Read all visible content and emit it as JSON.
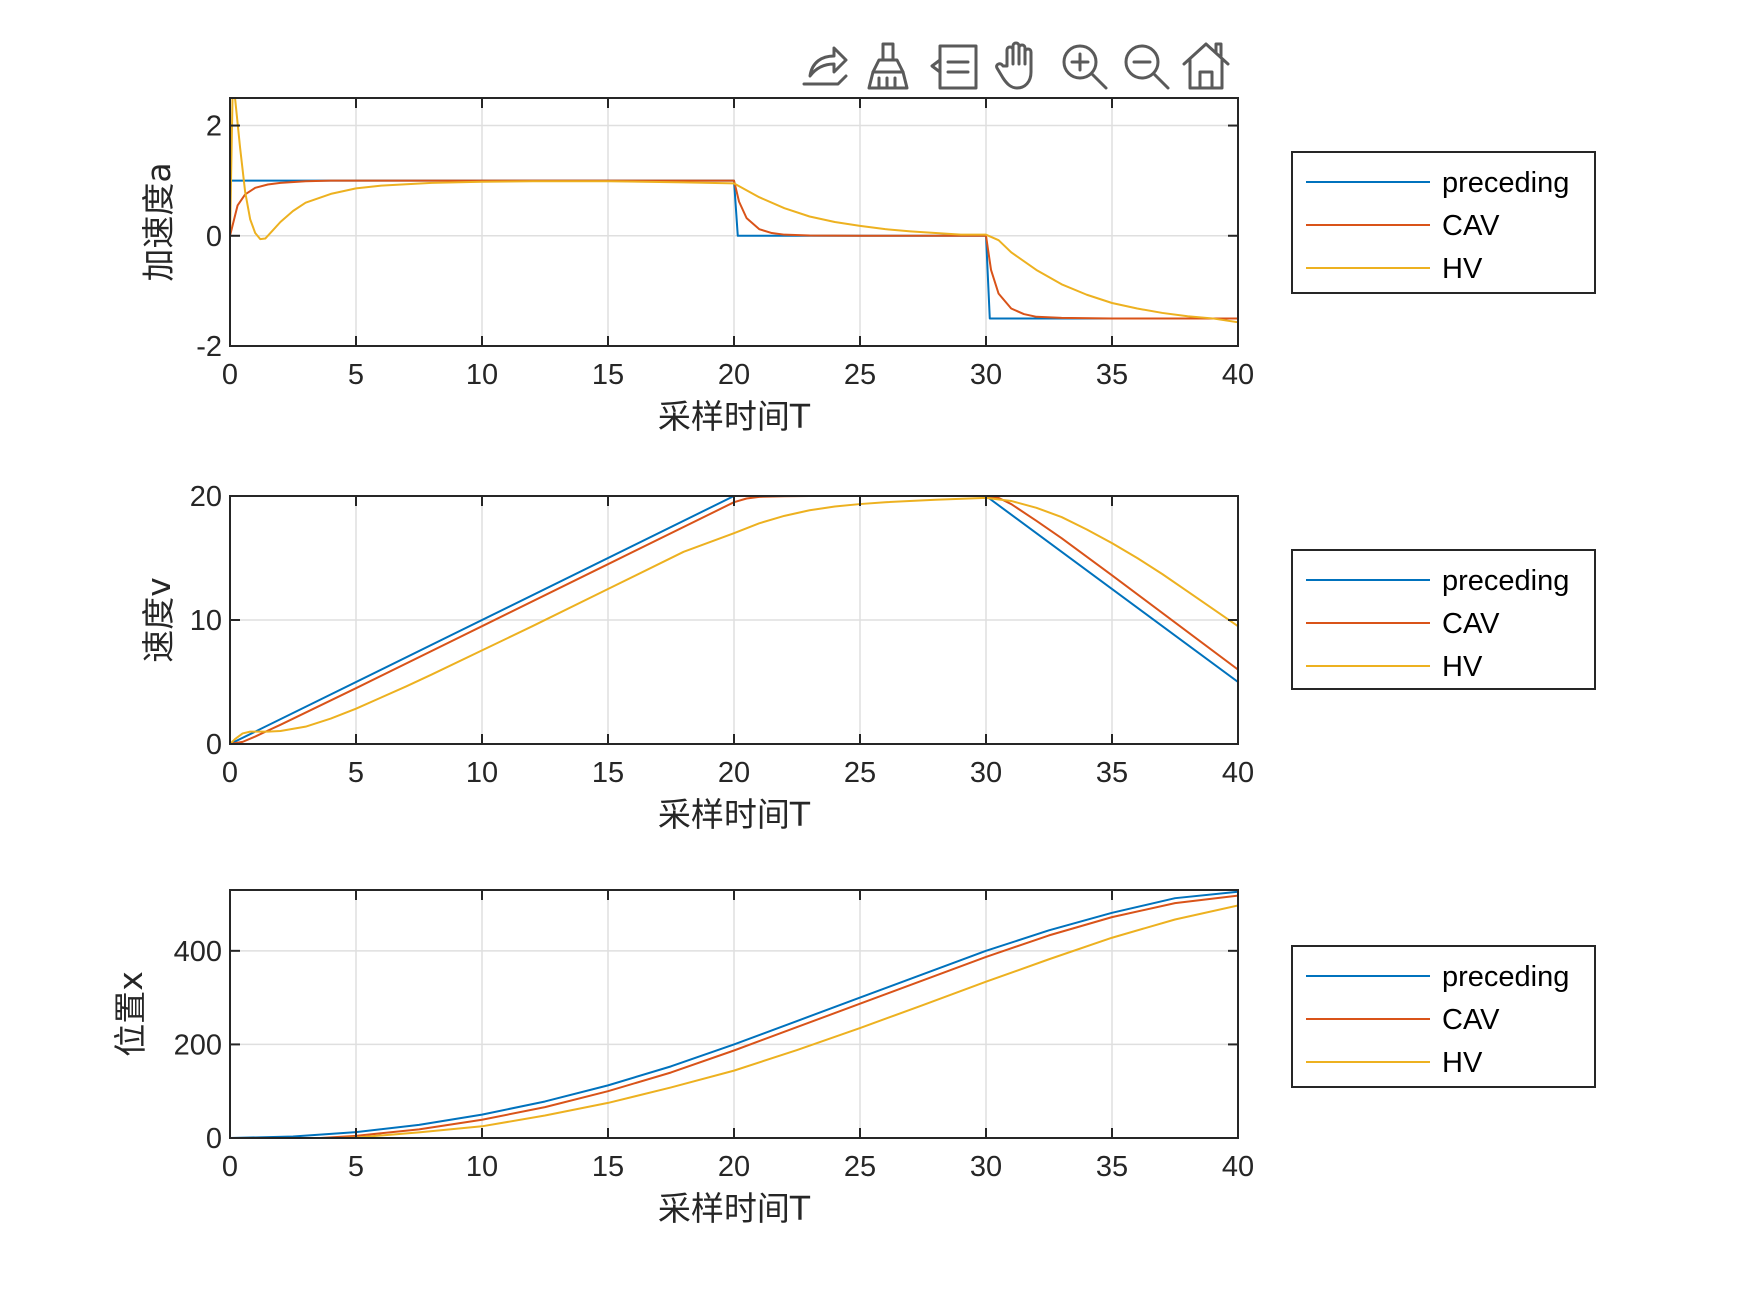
{
  "figure": {
    "background": "#ffffff",
    "axis_color": "#262626",
    "grid_color": "#dfdfdf"
  },
  "toolbar": {
    "icons": [
      "export-icon",
      "brush-icon",
      "datatip-icon",
      "pan-icon",
      "zoom-in-icon",
      "zoom-out-icon",
      "home-icon"
    ]
  },
  "chart_data": [
    {
      "type": "line",
      "xlabel": "采样时间T",
      "ylabel": "加速度a",
      "xlim": [
        0,
        40
      ],
      "ylim": [
        -2,
        2.5
      ],
      "xticks": [
        0,
        5,
        10,
        15,
        20,
        25,
        30,
        35,
        40
      ],
      "xtick_labels": [
        "0",
        "5",
        "10",
        "15",
        "20",
        "25",
        "30",
        "35",
        "40"
      ],
      "yticks": [
        -2,
        0,
        2
      ],
      "ytick_labels": [
        "-2",
        "0",
        "2"
      ],
      "grid": true,
      "legend": "outside-right",
      "series": [
        {
          "name": "preceding",
          "color": "#0072BD",
          "x": [
            0,
            0.02,
            20,
            20.15,
            30,
            30.15,
            40
          ],
          "y": [
            1,
            1,
            1,
            0,
            0,
            -1.5,
            -1.5
          ]
        },
        {
          "name": "CAV",
          "color": "#D95319",
          "x": [
            0,
            0.3,
            0.6,
            1,
            1.5,
            2,
            3,
            4,
            5,
            20,
            20.2,
            20.5,
            21,
            21.5,
            22,
            23,
            25,
            30,
            30.2,
            30.5,
            31,
            31.5,
            32,
            33,
            35,
            40
          ],
          "y": [
            0,
            0.55,
            0.75,
            0.87,
            0.93,
            0.96,
            0.99,
            1,
            1,
            1,
            0.62,
            0.32,
            0.12,
            0.05,
            0.02,
            0.005,
            0,
            0,
            -0.62,
            -1.05,
            -1.32,
            -1.42,
            -1.47,
            -1.49,
            -1.5,
            -1.5
          ]
        },
        {
          "name": "HV",
          "color": "#EDB120",
          "x": [
            0,
            0.1,
            0.2,
            0.4,
            0.6,
            0.8,
            1,
            1.2,
            1.4,
            1.7,
            2,
            2.5,
            3,
            4,
            5,
            6,
            8,
            10,
            12,
            15,
            18,
            20,
            21,
            22,
            23,
            24,
            25,
            26,
            27,
            28,
            29,
            30,
            30.5,
            31,
            32,
            33,
            34,
            35,
            36,
            37,
            38,
            39,
            40
          ],
          "y": [
            0,
            2.5,
            2.5,
            1.6,
            0.8,
            0.3,
            0.05,
            -0.06,
            -0.05,
            0.1,
            0.25,
            0.45,
            0.6,
            0.76,
            0.86,
            0.91,
            0.96,
            0.98,
            0.99,
            0.99,
            0.97,
            0.95,
            0.7,
            0.5,
            0.35,
            0.25,
            0.18,
            0.12,
            0.08,
            0.05,
            0.02,
            0.02,
            -0.08,
            -0.3,
            -0.62,
            -0.88,
            -1.07,
            -1.22,
            -1.32,
            -1.4,
            -1.46,
            -1.5,
            -1.57
          ]
        }
      ]
    },
    {
      "type": "line",
      "xlabel": "采样时间T",
      "ylabel": "速度v",
      "xlim": [
        0,
        40
      ],
      "ylim": [
        0,
        20
      ],
      "xticks": [
        0,
        5,
        10,
        15,
        20,
        25,
        30,
        35,
        40
      ],
      "xtick_labels": [
        "0",
        "5",
        "10",
        "15",
        "20",
        "25",
        "30",
        "35",
        "40"
      ],
      "yticks": [
        0,
        10,
        20
      ],
      "ytick_labels": [
        "0",
        "10",
        "20"
      ],
      "grid": true,
      "legend": "outside-right",
      "series": [
        {
          "name": "preceding",
          "color": "#0072BD",
          "x": [
            0,
            20,
            30,
            40
          ],
          "y": [
            0,
            20,
            20,
            5
          ]
        },
        {
          "name": "CAV",
          "color": "#D95319",
          "x": [
            0,
            0.5,
            1,
            1.5,
            2,
            5,
            10,
            15,
            20,
            20.5,
            21,
            22,
            23,
            25,
            30,
            30.5,
            31,
            32,
            33,
            35,
            40
          ],
          "y": [
            0,
            0.17,
            0.6,
            1.08,
            1.55,
            4.5,
            9.5,
            14.5,
            19.5,
            19.8,
            19.93,
            19.98,
            20,
            20,
            20,
            19.85,
            19.35,
            18.0,
            16.6,
            13.6,
            6.0
          ]
        },
        {
          "name": "HV",
          "color": "#EDB120",
          "x": [
            0,
            0.2,
            0.5,
            0.8,
            1,
            1.5,
            2,
            3,
            4,
            5,
            6,
            7,
            8,
            10,
            12,
            15,
            18,
            20,
            21,
            22,
            23,
            24,
            25,
            26,
            28,
            30,
            31,
            32,
            33,
            34,
            35,
            36,
            37,
            38,
            39,
            40
          ],
          "y": [
            0,
            0.4,
            0.85,
            1.0,
            1.0,
            1.0,
            1.05,
            1.4,
            2.05,
            2.85,
            3.75,
            4.65,
            5.6,
            7.55,
            9.5,
            12.5,
            15.5,
            17.0,
            17.8,
            18.4,
            18.85,
            19.15,
            19.35,
            19.5,
            19.7,
            19.85,
            19.6,
            19.05,
            18.3,
            17.3,
            16.2,
            15.0,
            13.7,
            12.3,
            10.9,
            9.5
          ]
        }
      ]
    },
    {
      "type": "line",
      "xlabel": "采样时间T",
      "ylabel": "位置x",
      "xlim": [
        0,
        40
      ],
      "ylim": [
        0,
        530
      ],
      "xticks": [
        0,
        5,
        10,
        15,
        20,
        25,
        30,
        35,
        40
      ],
      "xtick_labels": [
        "0",
        "5",
        "10",
        "15",
        "20",
        "25",
        "30",
        "35",
        "40"
      ],
      "yticks": [
        0,
        200,
        400
      ],
      "ytick_labels": [
        "0",
        "200",
        "400"
      ],
      "grid": true,
      "legend": "outside-right",
      "series": [
        {
          "name": "preceding",
          "color": "#0072BD",
          "x": [
            0,
            2.5,
            5,
            7.5,
            10,
            12.5,
            15,
            17.5,
            20,
            22.5,
            25,
            27.5,
            30,
            32.5,
            35,
            37.5,
            40
          ],
          "y": [
            0,
            3.1,
            12.5,
            28.1,
            50,
            78.1,
            112.5,
            153.1,
            200,
            250,
            300,
            350,
            400,
            443.8,
            481.3,
            512.5,
            526.3
          ]
        },
        {
          "name": "CAV",
          "color": "#D95319",
          "x": [
            0,
            2.5,
            5,
            7.5,
            10,
            12.5,
            15,
            17.5,
            20,
            22.5,
            25,
            27.5,
            30,
            32.5,
            35,
            37.5,
            40
          ],
          "y": [
            -5,
            -3.5,
            4.5,
            18.5,
            39,
            66,
            100,
            140,
            187,
            237,
            287,
            337,
            387,
            433,
            472,
            502,
            518
          ]
        },
        {
          "name": "HV",
          "color": "#EDB120",
          "x": [
            0,
            2.5,
            5,
            7.5,
            10,
            12.5,
            15,
            17.5,
            20,
            22.5,
            25,
            27.5,
            30,
            32.5,
            35,
            37.5,
            40
          ],
          "y": [
            -5,
            -3,
            1,
            12,
            25,
            48,
            75,
            108,
            144,
            188,
            235,
            284,
            334,
            382,
            428,
            467,
            497
          ]
        }
      ]
    }
  ]
}
